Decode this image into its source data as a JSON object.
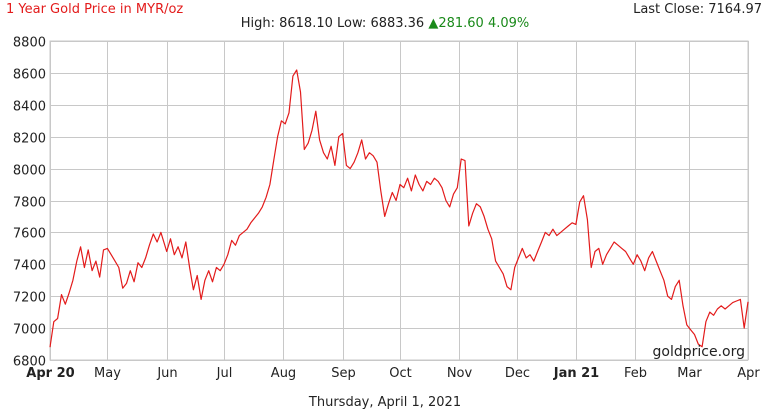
{
  "header": {
    "title": "1 Year Gold Price in MYR/oz",
    "high_label": "High:",
    "high_value": "8618.10",
    "low_label": "Low:",
    "low_value": "6883.36",
    "change_value": "281.60",
    "change_pct": "4.09%",
    "last_close_label": "Last Close:",
    "last_close_value": "7164.97"
  },
  "footer": {
    "date": "Thursday, April 1, 2021"
  },
  "watermark": "goldprice.org",
  "colors": {
    "line": "#e31b1b",
    "grid": "#c8c8c8",
    "up": "#1a8a1a",
    "title": "#e31b1b"
  },
  "chart_data": {
    "type": "line",
    "title": "1 Year Gold Price in MYR/oz",
    "xlabel": "",
    "ylabel": "",
    "ylim": [
      6800,
      8800
    ],
    "yticks": [
      6800,
      7000,
      7200,
      7400,
      7600,
      7800,
      8000,
      8200,
      8400,
      8600,
      8800
    ],
    "xlim": [
      "2020-04-01",
      "2021-04-01"
    ],
    "xticks": [
      {
        "label": "Apr 20",
        "date": "2020-04-01",
        "bold": true
      },
      {
        "label": "May",
        "date": "2020-05-01",
        "bold": false
      },
      {
        "label": "Jun",
        "date": "2020-06-01",
        "bold": false
      },
      {
        "label": "Jul",
        "date": "2020-07-01",
        "bold": false
      },
      {
        "label": "Aug",
        "date": "2020-08-01",
        "bold": false
      },
      {
        "label": "Sep",
        "date": "2020-09-01",
        "bold": false
      },
      {
        "label": "Oct",
        "date": "2020-10-01",
        "bold": false
      },
      {
        "label": "Nov",
        "date": "2020-11-01",
        "bold": false
      },
      {
        "label": "Dec",
        "date": "2020-12-01",
        "bold": false
      },
      {
        "label": "Jan 21",
        "date": "2021-01-01",
        "bold": true
      },
      {
        "label": "Feb",
        "date": "2021-02-01",
        "bold": false
      },
      {
        "label": "Mar",
        "date": "2021-03-01",
        "bold": false
      },
      {
        "label": "Apr",
        "date": "2021-04-01",
        "bold": false
      }
    ],
    "grid": true,
    "series": [
      {
        "points": [
          [
            "2020-04-01",
            6880
          ],
          [
            "2020-04-03",
            7040
          ],
          [
            "2020-04-05",
            7060
          ],
          [
            "2020-04-07",
            7210
          ],
          [
            "2020-04-09",
            7150
          ],
          [
            "2020-04-11",
            7220
          ],
          [
            "2020-04-13",
            7300
          ],
          [
            "2020-04-15",
            7420
          ],
          [
            "2020-04-17",
            7510
          ],
          [
            "2020-04-19",
            7380
          ],
          [
            "2020-04-21",
            7490
          ],
          [
            "2020-04-23",
            7360
          ],
          [
            "2020-04-25",
            7420
          ],
          [
            "2020-04-27",
            7320
          ],
          [
            "2020-04-29",
            7490
          ],
          [
            "2020-05-01",
            7500
          ],
          [
            "2020-05-03",
            7460
          ],
          [
            "2020-05-05",
            7420
          ],
          [
            "2020-05-07",
            7380
          ],
          [
            "2020-05-09",
            7250
          ],
          [
            "2020-05-11",
            7280
          ],
          [
            "2020-05-13",
            7360
          ],
          [
            "2020-05-15",
            7290
          ],
          [
            "2020-05-17",
            7410
          ],
          [
            "2020-05-19",
            7380
          ],
          [
            "2020-05-21",
            7440
          ],
          [
            "2020-05-23",
            7520
          ],
          [
            "2020-05-25",
            7590
          ],
          [
            "2020-05-27",
            7540
          ],
          [
            "2020-05-29",
            7600
          ],
          [
            "2020-06-01",
            7480
          ],
          [
            "2020-06-03",
            7560
          ],
          [
            "2020-06-05",
            7460
          ],
          [
            "2020-06-07",
            7510
          ],
          [
            "2020-06-09",
            7440
          ],
          [
            "2020-06-11",
            7540
          ],
          [
            "2020-06-13",
            7380
          ],
          [
            "2020-06-15",
            7240
          ],
          [
            "2020-06-17",
            7330
          ],
          [
            "2020-06-19",
            7180
          ],
          [
            "2020-06-21",
            7300
          ],
          [
            "2020-06-23",
            7360
          ],
          [
            "2020-06-25",
            7290
          ],
          [
            "2020-06-27",
            7380
          ],
          [
            "2020-06-29",
            7360
          ],
          [
            "2020-07-01",
            7400
          ],
          [
            "2020-07-03",
            7460
          ],
          [
            "2020-07-05",
            7550
          ],
          [
            "2020-07-07",
            7520
          ],
          [
            "2020-07-09",
            7580
          ],
          [
            "2020-07-11",
            7600
          ],
          [
            "2020-07-13",
            7620
          ],
          [
            "2020-07-15",
            7660
          ],
          [
            "2020-07-17",
            7690
          ],
          [
            "2020-07-19",
            7720
          ],
          [
            "2020-07-21",
            7760
          ],
          [
            "2020-07-23",
            7820
          ],
          [
            "2020-07-25",
            7900
          ],
          [
            "2020-07-27",
            8050
          ],
          [
            "2020-07-29",
            8200
          ],
          [
            "2020-07-31",
            8300
          ],
          [
            "2020-08-02",
            8280
          ],
          [
            "2020-08-04",
            8350
          ],
          [
            "2020-08-06",
            8580
          ],
          [
            "2020-08-08",
            8618
          ],
          [
            "2020-08-10",
            8480
          ],
          [
            "2020-08-12",
            8120
          ],
          [
            "2020-08-14",
            8160
          ],
          [
            "2020-08-16",
            8240
          ],
          [
            "2020-08-18",
            8360
          ],
          [
            "2020-08-20",
            8180
          ],
          [
            "2020-08-22",
            8100
          ],
          [
            "2020-08-24",
            8060
          ],
          [
            "2020-08-26",
            8140
          ],
          [
            "2020-08-28",
            8020
          ],
          [
            "2020-08-30",
            8200
          ],
          [
            "2020-09-01",
            8220
          ],
          [
            "2020-09-03",
            8020
          ],
          [
            "2020-09-05",
            8000
          ],
          [
            "2020-09-07",
            8040
          ],
          [
            "2020-09-09",
            8100
          ],
          [
            "2020-09-11",
            8180
          ],
          [
            "2020-09-13",
            8060
          ],
          [
            "2020-09-15",
            8100
          ],
          [
            "2020-09-17",
            8080
          ],
          [
            "2020-09-19",
            8040
          ],
          [
            "2020-09-21",
            7860
          ],
          [
            "2020-09-23",
            7700
          ],
          [
            "2020-09-25",
            7780
          ],
          [
            "2020-09-27",
            7850
          ],
          [
            "2020-09-29",
            7800
          ],
          [
            "2020-10-01",
            7900
          ],
          [
            "2020-10-03",
            7880
          ],
          [
            "2020-10-05",
            7940
          ],
          [
            "2020-10-07",
            7860
          ],
          [
            "2020-10-09",
            7960
          ],
          [
            "2020-10-11",
            7900
          ],
          [
            "2020-10-13",
            7860
          ],
          [
            "2020-10-15",
            7920
          ],
          [
            "2020-10-17",
            7900
          ],
          [
            "2020-10-19",
            7940
          ],
          [
            "2020-10-21",
            7920
          ],
          [
            "2020-10-23",
            7880
          ],
          [
            "2020-10-25",
            7800
          ],
          [
            "2020-10-27",
            7760
          ],
          [
            "2020-10-29",
            7840
          ],
          [
            "2020-10-31",
            7880
          ],
          [
            "2020-11-02",
            8060
          ],
          [
            "2020-11-04",
            8050
          ],
          [
            "2020-11-06",
            7640
          ],
          [
            "2020-11-08",
            7720
          ],
          [
            "2020-11-10",
            7780
          ],
          [
            "2020-11-12",
            7760
          ],
          [
            "2020-11-14",
            7700
          ],
          [
            "2020-11-16",
            7620
          ],
          [
            "2020-11-18",
            7560
          ],
          [
            "2020-11-20",
            7420
          ],
          [
            "2020-11-22",
            7380
          ],
          [
            "2020-11-24",
            7340
          ],
          [
            "2020-11-26",
            7260
          ],
          [
            "2020-11-28",
            7240
          ],
          [
            "2020-11-30",
            7380
          ],
          [
            "2020-12-02",
            7440
          ],
          [
            "2020-12-04",
            7500
          ],
          [
            "2020-12-06",
            7440
          ],
          [
            "2020-12-08",
            7460
          ],
          [
            "2020-12-10",
            7420
          ],
          [
            "2020-12-12",
            7480
          ],
          [
            "2020-12-14",
            7540
          ],
          [
            "2020-12-16",
            7600
          ],
          [
            "2020-12-18",
            7580
          ],
          [
            "2020-12-20",
            7620
          ],
          [
            "2020-12-22",
            7580
          ],
          [
            "2020-12-24",
            7600
          ],
          [
            "2020-12-26",
            7620
          ],
          [
            "2020-12-28",
            7640
          ],
          [
            "2020-12-30",
            7660
          ],
          [
            "2021-01-01",
            7650
          ],
          [
            "2021-01-03",
            7790
          ],
          [
            "2021-01-05",
            7830
          ],
          [
            "2021-01-07",
            7680
          ],
          [
            "2021-01-09",
            7380
          ],
          [
            "2021-01-11",
            7480
          ],
          [
            "2021-01-13",
            7500
          ],
          [
            "2021-01-15",
            7400
          ],
          [
            "2021-01-17",
            7460
          ],
          [
            "2021-01-19",
            7500
          ],
          [
            "2021-01-21",
            7540
          ],
          [
            "2021-01-23",
            7520
          ],
          [
            "2021-01-25",
            7500
          ],
          [
            "2021-01-27",
            7480
          ],
          [
            "2021-01-29",
            7440
          ],
          [
            "2021-01-31",
            7400
          ],
          [
            "2021-02-02",
            7460
          ],
          [
            "2021-02-04",
            7420
          ],
          [
            "2021-02-06",
            7360
          ],
          [
            "2021-02-08",
            7440
          ],
          [
            "2021-02-10",
            7480
          ],
          [
            "2021-02-12",
            7420
          ],
          [
            "2021-02-14",
            7360
          ],
          [
            "2021-02-16",
            7300
          ],
          [
            "2021-02-18",
            7200
          ],
          [
            "2021-02-20",
            7180
          ],
          [
            "2021-02-22",
            7260
          ],
          [
            "2021-02-24",
            7300
          ],
          [
            "2021-02-26",
            7140
          ],
          [
            "2021-02-28",
            7020
          ],
          [
            "2021-03-02",
            6990
          ],
          [
            "2021-03-04",
            6960
          ],
          [
            "2021-03-06",
            6900
          ],
          [
            "2021-03-08",
            6883
          ],
          [
            "2021-03-10",
            7040
          ],
          [
            "2021-03-12",
            7100
          ],
          [
            "2021-03-14",
            7080
          ],
          [
            "2021-03-16",
            7120
          ],
          [
            "2021-03-18",
            7140
          ],
          [
            "2021-03-20",
            7120
          ],
          [
            "2021-03-22",
            7140
          ],
          [
            "2021-03-24",
            7160
          ],
          [
            "2021-03-26",
            7170
          ],
          [
            "2021-03-28",
            7180
          ],
          [
            "2021-03-30",
            7000
          ],
          [
            "2021-04-01",
            7165
          ]
        ]
      }
    ]
  }
}
